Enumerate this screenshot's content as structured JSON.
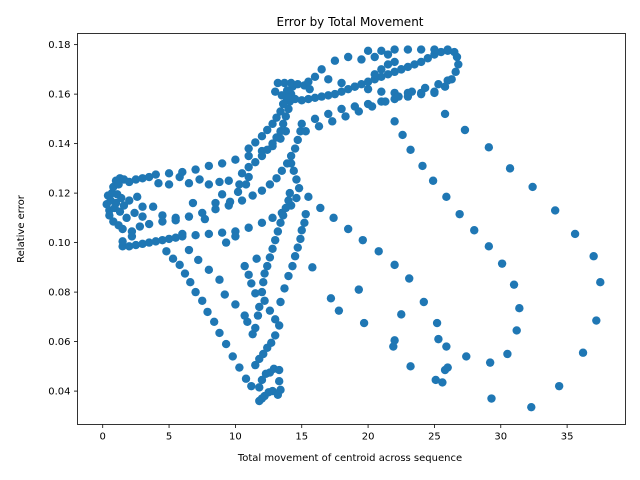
{
  "chart_data": {
    "type": "scatter",
    "title": "Error by Total Movement",
    "xlabel": "Total movement of centroid across sequence",
    "ylabel": "Relative error",
    "xlim": [
      -1.9,
      39.4
    ],
    "ylim": [
      0.0265,
      0.1845
    ],
    "xticks": [
      0,
      5,
      10,
      15,
      20,
      25,
      30,
      35
    ],
    "yticks": [
      0.04,
      0.06,
      0.08,
      0.1,
      0.12,
      0.14,
      0.16,
      0.18
    ],
    "xtick_labels": [
      "0",
      "5",
      "10",
      "15",
      "20",
      "25",
      "30",
      "35"
    ],
    "ytick_labels": [
      "0.04",
      "0.06",
      "0.08",
      "0.10",
      "0.12",
      "0.14",
      "0.16",
      "0.18"
    ],
    "grid": false,
    "marker_color": "#1f77b4",
    "points": [
      [
        0.3,
        0.1155
      ],
      [
        0.4,
        0.119
      ],
      [
        0.5,
        0.113
      ],
      [
        0.5,
        0.111
      ],
      [
        0.6,
        0.117
      ],
      [
        0.7,
        0.12
      ],
      [
        0.8,
        0.1085
      ],
      [
        0.9,
        0.114
      ],
      [
        1.0,
        0.116
      ],
      [
        1.1,
        0.1195
      ],
      [
        1.2,
        0.107
      ],
      [
        1.3,
        0.1125
      ],
      [
        1.4,
        0.118
      ],
      [
        1.5,
        0.1055
      ],
      [
        1.6,
        0.115
      ],
      [
        1.8,
        0.11
      ],
      [
        2.0,
        0.117
      ],
      [
        2.2,
        0.1045
      ],
      [
        2.4,
        0.112
      ],
      [
        2.6,
        0.1185
      ],
      [
        2.8,
        0.1065
      ],
      [
        3.0,
        0.1145
      ],
      [
        0.8,
        0.1225
      ],
      [
        1.0,
        0.125
      ],
      [
        1.3,
        0.126
      ],
      [
        1.6,
        0.1255
      ],
      [
        2.0,
        0.1245
      ],
      [
        2.5,
        0.1255
      ],
      [
        3.0,
        0.126
      ],
      [
        3.5,
        0.1265
      ],
      [
        4.2,
        0.124
      ],
      [
        5.0,
        0.1235
      ],
      [
        5.8,
        0.1265
      ],
      [
        6.5,
        0.124
      ],
      [
        7.3,
        0.1255
      ],
      [
        8.0,
        0.1235
      ],
      [
        8.8,
        0.1245
      ],
      [
        9.5,
        0.125
      ],
      [
        10.3,
        0.1235
      ],
      [
        11.0,
        0.1265
      ],
      [
        4.0,
        0.1275
      ],
      [
        5.0,
        0.128
      ],
      [
        6.0,
        0.1285
      ],
      [
        7.0,
        0.1295
      ],
      [
        8.0,
        0.131
      ],
      [
        9.0,
        0.132
      ],
      [
        10.0,
        0.1335
      ],
      [
        11.0,
        0.135
      ],
      [
        12.0,
        0.137
      ],
      [
        12.8,
        0.139
      ],
      [
        13.4,
        0.142
      ],
      [
        13.8,
        0.145
      ],
      [
        1.5,
        0.0985
      ],
      [
        2.0,
        0.0985
      ],
      [
        2.5,
        0.099
      ],
      [
        3.0,
        0.0995
      ],
      [
        3.5,
        0.1
      ],
      [
        4.0,
        0.1005
      ],
      [
        4.5,
        0.101
      ],
      [
        5.0,
        0.1015
      ],
      [
        5.5,
        0.102
      ],
      [
        6.0,
        0.1025
      ],
      [
        7.0,
        0.103
      ],
      [
        8.0,
        0.1035
      ],
      [
        9.0,
        0.104
      ],
      [
        10.0,
        0.1045
      ],
      [
        11.0,
        0.106
      ],
      [
        12.0,
        0.108
      ],
      [
        12.8,
        0.11
      ],
      [
        13.5,
        0.112
      ],
      [
        14.2,
        0.115
      ],
      [
        14.6,
        0.118
      ],
      [
        3.5,
        0.1075
      ],
      [
        4.5,
        0.1085
      ],
      [
        5.5,
        0.11
      ],
      [
        6.5,
        0.1105
      ],
      [
        7.5,
        0.112
      ],
      [
        8.5,
        0.1135
      ],
      [
        9.5,
        0.115
      ],
      [
        10.5,
        0.117
      ],
      [
        11.3,
        0.119
      ],
      [
        12.0,
        0.121
      ],
      [
        12.6,
        0.1235
      ],
      [
        13.1,
        0.126
      ],
      [
        13.5,
        0.129
      ],
      [
        13.9,
        0.132
      ],
      [
        14.2,
        0.135
      ],
      [
        14.5,
        0.138
      ],
      [
        14.7,
        0.1415
      ],
      [
        14.9,
        0.145
      ],
      [
        10.5,
        0.128
      ],
      [
        11.0,
        0.1305
      ],
      [
        11.5,
        0.1325
      ],
      [
        12.0,
        0.135
      ],
      [
        12.4,
        0.1375
      ],
      [
        12.8,
        0.14
      ],
      [
        13.1,
        0.1425
      ],
      [
        13.4,
        0.145
      ],
      [
        13.6,
        0.148
      ],
      [
        13.8,
        0.151
      ],
      [
        14.0,
        0.154
      ],
      [
        14.1,
        0.157
      ],
      [
        14.2,
        0.16
      ],
      [
        14.3,
        0.163
      ],
      [
        11.0,
        0.138
      ],
      [
        11.5,
        0.1405
      ],
      [
        12.0,
        0.143
      ],
      [
        12.4,
        0.1455
      ],
      [
        12.8,
        0.148
      ],
      [
        13.1,
        0.1505
      ],
      [
        13.4,
        0.153
      ],
      [
        13.6,
        0.156
      ],
      [
        13.8,
        0.159
      ],
      [
        13.9,
        0.1615
      ],
      [
        13.2,
        0.1645
      ],
      [
        13.7,
        0.1645
      ],
      [
        14.2,
        0.1645
      ],
      [
        14.7,
        0.164
      ],
      [
        15.2,
        0.1635
      ],
      [
        15.6,
        0.162
      ],
      [
        13.0,
        0.161
      ],
      [
        13.5,
        0.1595
      ],
      [
        14.0,
        0.1585
      ],
      [
        14.5,
        0.158
      ],
      [
        15.0,
        0.1575
      ],
      [
        15.5,
        0.158
      ],
      [
        16.0,
        0.1585
      ],
      [
        16.5,
        0.159
      ],
      [
        17.0,
        0.1595
      ],
      [
        17.5,
        0.16
      ],
      [
        18.0,
        0.161
      ],
      [
        18.5,
        0.162
      ],
      [
        19.0,
        0.163
      ],
      [
        19.5,
        0.164
      ],
      [
        20.0,
        0.165
      ],
      [
        20.5,
        0.166
      ],
      [
        21.0,
        0.167
      ],
      [
        21.5,
        0.168
      ],
      [
        22.0,
        0.169
      ],
      [
        22.5,
        0.17
      ],
      [
        23.0,
        0.171
      ],
      [
        23.5,
        0.172
      ],
      [
        24.0,
        0.173
      ],
      [
        24.5,
        0.1745
      ],
      [
        25.0,
        0.176
      ],
      [
        25.5,
        0.177
      ],
      [
        26.0,
        0.1775
      ],
      [
        26.5,
        0.177
      ],
      [
        26.7,
        0.175
      ],
      [
        26.8,
        0.172
      ],
      [
        26.6,
        0.169
      ],
      [
        26.3,
        0.166
      ],
      [
        25.8,
        0.163
      ],
      [
        25.0,
        0.161
      ],
      [
        24.0,
        0.1605
      ],
      [
        23.0,
        0.1605
      ],
      [
        22.0,
        0.1605
      ],
      [
        21.0,
        0.161
      ],
      [
        20.0,
        0.162
      ],
      [
        19.0,
        0.163
      ],
      [
        18.0,
        0.1645
      ],
      [
        17.0,
        0.166
      ],
      [
        16.0,
        0.167
      ],
      [
        15.5,
        0.165
      ],
      [
        20.0,
        0.1775
      ],
      [
        21.0,
        0.1775
      ],
      [
        22.0,
        0.178
      ],
      [
        23.0,
        0.178
      ],
      [
        24.0,
        0.178
      ],
      [
        25.0,
        0.178
      ],
      [
        26.0,
        0.178
      ],
      [
        19.5,
        0.174
      ],
      [
        20.5,
        0.175
      ],
      [
        21.5,
        0.176
      ],
      [
        15.0,
        0.148
      ],
      [
        16.0,
        0.15
      ],
      [
        17.0,
        0.152
      ],
      [
        18.0,
        0.154
      ],
      [
        19.0,
        0.155
      ],
      [
        20.0,
        0.156
      ],
      [
        21.0,
        0.157
      ],
      [
        22.0,
        0.158
      ],
      [
        23.0,
        0.159
      ],
      [
        24.0,
        0.16
      ],
      [
        25.0,
        0.1605
      ],
      [
        15.3,
        0.145
      ],
      [
        16.3,
        0.147
      ],
      [
        17.3,
        0.149
      ],
      [
        18.3,
        0.151
      ],
      [
        19.3,
        0.153
      ],
      [
        20.3,
        0.155
      ],
      [
        21.3,
        0.157
      ],
      [
        22.3,
        0.159
      ],
      [
        23.3,
        0.161
      ],
      [
        24.3,
        0.1625
      ],
      [
        25.3,
        0.164
      ],
      [
        26.0,
        0.1655
      ],
      [
        16.5,
        0.17
      ],
      [
        17.5,
        0.1735
      ],
      [
        18.5,
        0.175
      ],
      [
        20.5,
        0.168
      ],
      [
        21.0,
        0.17
      ],
      [
        21.5,
        0.172
      ],
      [
        22.0,
        0.173
      ],
      [
        22.5,
        0.17
      ],
      [
        25.8,
        0.152
      ],
      [
        27.3,
        0.1455
      ],
      [
        29.1,
        0.1385
      ],
      [
        30.7,
        0.13
      ],
      [
        32.4,
        0.1225
      ],
      [
        34.1,
        0.113
      ],
      [
        35.6,
        0.1035
      ],
      [
        37.0,
        0.0945
      ],
      [
        37.5,
        0.084
      ],
      [
        22.0,
        0.149
      ],
      [
        22.6,
        0.1435
      ],
      [
        23.2,
        0.1375
      ],
      [
        24.1,
        0.131
      ],
      [
        24.9,
        0.125
      ],
      [
        25.9,
        0.1185
      ],
      [
        26.9,
        0.1115
      ],
      [
        28.0,
        0.105
      ],
      [
        29.1,
        0.0985
      ],
      [
        30.1,
        0.0915
      ],
      [
        31.0,
        0.083
      ],
      [
        31.4,
        0.0735
      ],
      [
        31.2,
        0.0645
      ],
      [
        30.5,
        0.055
      ],
      [
        29.2,
        0.0515
      ],
      [
        27.4,
        0.054
      ],
      [
        25.8,
        0.0485
      ],
      [
        25.1,
        0.0445
      ],
      [
        15.5,
        0.1185
      ],
      [
        16.4,
        0.114
      ],
      [
        17.4,
        0.11
      ],
      [
        18.5,
        0.1055
      ],
      [
        19.6,
        0.101
      ],
      [
        20.8,
        0.0965
      ],
      [
        22.0,
        0.091
      ],
      [
        23.1,
        0.0855
      ],
      [
        24.2,
        0.076
      ],
      [
        25.2,
        0.0675
      ],
      [
        25.3,
        0.061
      ],
      [
        25.9,
        0.058
      ],
      [
        26.0,
        0.0495
      ],
      [
        25.6,
        0.0435
      ],
      [
        15.8,
        0.09
      ],
      [
        17.2,
        0.0775
      ],
      [
        17.8,
        0.0725
      ],
      [
        19.3,
        0.081
      ],
      [
        19.7,
        0.0675
      ],
      [
        22.0,
        0.0605
      ],
      [
        21.9,
        0.058
      ],
      [
        22.5,
        0.071
      ],
      [
        23.2,
        0.05
      ],
      [
        29.3,
        0.037
      ],
      [
        32.3,
        0.0335
      ],
      [
        34.4,
        0.042
      ],
      [
        36.2,
        0.0555
      ],
      [
        37.2,
        0.0685
      ],
      [
        11.8,
        0.036
      ],
      [
        12.0,
        0.037
      ],
      [
        12.2,
        0.038
      ],
      [
        12.5,
        0.0395
      ],
      [
        12.8,
        0.04
      ],
      [
        13.2,
        0.0385
      ],
      [
        13.4,
        0.0405
      ],
      [
        13.3,
        0.044
      ],
      [
        11.8,
        0.0415
      ],
      [
        12.0,
        0.0445
      ],
      [
        12.3,
        0.047
      ],
      [
        12.6,
        0.0475
      ],
      [
        12.9,
        0.049
      ],
      [
        13.3,
        0.0485
      ],
      [
        11.2,
        0.042
      ],
      [
        10.8,
        0.045
      ],
      [
        10.3,
        0.0495
      ],
      [
        9.8,
        0.054
      ],
      [
        9.3,
        0.059
      ],
      [
        8.8,
        0.0635
      ],
      [
        8.4,
        0.068
      ],
      [
        7.9,
        0.072
      ],
      [
        7.5,
        0.0765
      ],
      [
        7.0,
        0.08
      ],
      [
        6.6,
        0.084
      ],
      [
        6.2,
        0.0875
      ],
      [
        5.8,
        0.091
      ],
      [
        5.3,
        0.0935
      ],
      [
        4.8,
        0.0965
      ],
      [
        11.5,
        0.0505
      ],
      [
        11.8,
        0.053
      ],
      [
        12.1,
        0.055
      ],
      [
        12.4,
        0.0575
      ],
      [
        12.7,
        0.0595
      ],
      [
        13.0,
        0.0625
      ],
      [
        13.3,
        0.0665
      ],
      [
        13.0,
        0.069
      ],
      [
        12.6,
        0.0725
      ],
      [
        12.2,
        0.0765
      ],
      [
        12.0,
        0.08
      ],
      [
        12.1,
        0.084
      ],
      [
        12.2,
        0.0875
      ],
      [
        12.4,
        0.0905
      ],
      [
        12.6,
        0.094
      ],
      [
        12.8,
        0.0975
      ],
      [
        13.0,
        0.101
      ],
      [
        13.2,
        0.1045
      ],
      [
        13.4,
        0.108
      ],
      [
        13.6,
        0.111
      ],
      [
        13.8,
        0.114
      ],
      [
        14.0,
        0.117
      ],
      [
        14.1,
        0.12
      ],
      [
        10.9,
        0.068
      ],
      [
        11.3,
        0.063
      ],
      [
        11.5,
        0.0655
      ],
      [
        11.7,
        0.0705
      ],
      [
        11.8,
        0.074
      ],
      [
        11.5,
        0.0795
      ],
      [
        11.2,
        0.0835
      ],
      [
        11.0,
        0.087
      ],
      [
        10.7,
        0.0905
      ],
      [
        11.6,
        0.0935
      ],
      [
        13.4,
        0.076
      ],
      [
        13.7,
        0.0815
      ],
      [
        14.0,
        0.0865
      ],
      [
        14.3,
        0.0905
      ],
      [
        14.5,
        0.0945
      ],
      [
        14.7,
        0.098
      ],
      [
        14.9,
        0.1015
      ],
      [
        15.0,
        0.105
      ],
      [
        15.2,
        0.108
      ],
      [
        15.3,
        0.1115
      ],
      [
        14.8,
        0.122
      ],
      [
        14.6,
        0.1255
      ],
      [
        14.4,
        0.129
      ],
      [
        14.2,
        0.132
      ],
      [
        6.5,
        0.097
      ],
      [
        7.2,
        0.093
      ],
      [
        8.0,
        0.089
      ],
      [
        8.8,
        0.085
      ],
      [
        9.3,
        0.1
      ],
      [
        10.0,
        0.1025
      ],
      [
        5.5,
        0.109
      ],
      [
        6.0,
        0.1035
      ],
      [
        6.8,
        0.116
      ],
      [
        7.7,
        0.1095
      ],
      [
        8.5,
        0.116
      ],
      [
        9.0,
        0.1195
      ],
      [
        9.6,
        0.1165
      ],
      [
        10.2,
        0.1205
      ],
      [
        10.8,
        0.1235
      ],
      [
        9.2,
        0.079
      ],
      [
        10.0,
        0.075
      ],
      [
        10.7,
        0.0705
      ],
      [
        3.0,
        0.1105
      ],
      [
        3.8,
        0.1145
      ],
      [
        4.5,
        0.111
      ],
      [
        1.2,
        0.1235
      ],
      [
        1.5,
        0.1005
      ],
      [
        2.2,
        0.1025
      ]
    ]
  }
}
